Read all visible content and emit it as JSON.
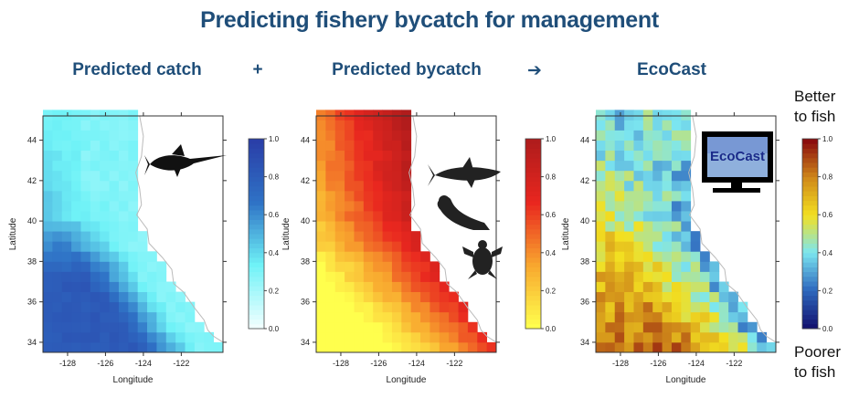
{
  "title": "Predicting fishery bycatch for management",
  "headers": {
    "catch": "Predicted catch",
    "plus": "+",
    "bycatch": "Predicted bycatch",
    "arrow": "➔",
    "ecocast": "EcoCast"
  },
  "axes": {
    "xlabel": "Longitude",
    "ylabel": "Latitude",
    "xticks": [
      "-128",
      "-126",
      "-124",
      "-122"
    ],
    "yticks": [
      "34",
      "36",
      "38",
      "40",
      "42",
      "44"
    ],
    "colorbar_ticks": [
      "0.0",
      "0.2",
      "0.4",
      "0.6",
      "0.8",
      "1.0"
    ]
  },
  "side_labels": {
    "top_line1": "Better",
    "top_line2": "to fish",
    "bottom_line1": "Poorer",
    "bottom_line2": "to fish"
  },
  "inset": {
    "logo_text": "EcoCast"
  },
  "icons": [
    "swordfish-icon",
    "shark-icon",
    "sea-lion-icon",
    "turtle-icon",
    "monitor-icon"
  ],
  "colors": {
    "title": "#1f4e79",
    "catch_ramp": [
      "#f0ffff",
      "#6ff2f7",
      "#2f73c6",
      "#2a3fa8"
    ],
    "bycatch_ramp": [
      "#ffff4d",
      "#f8a62e",
      "#e9271f",
      "#b01c1c"
    ],
    "ecocast_ramp": [
      "#141471",
      "#2f6bbf",
      "#7ce6f0",
      "#f3e021",
      "#d08a1a",
      "#8b0e0e"
    ]
  },
  "chart_data": [
    {
      "type": "heatmap",
      "title": "Predicted catch",
      "xlabel": "Longitude",
      "ylabel": "Latitude",
      "xlim": [
        -129.3,
        -119.8
      ],
      "ylim": [
        33.5,
        45.2
      ],
      "zlim": [
        0,
        1
      ],
      "colorbar_ticks": [
        0,
        0.2,
        0.4,
        0.6,
        0.8,
        1.0
      ],
      "pattern": "low near coast and north (~0.3), high offshore south (~0.75)"
    },
    {
      "type": "heatmap",
      "title": "Predicted bycatch",
      "xlabel": "Longitude",
      "ylabel": "Latitude",
      "xlim": [
        -129.3,
        -119.8
      ],
      "ylim": [
        33.5,
        45.2
      ],
      "zlim": [
        0,
        1
      ],
      "colorbar_ticks": [
        0,
        0.2,
        0.4,
        0.6,
        0.8,
        1.0
      ],
      "pattern": "high near coast (~0.85), lowest offshore south (~0.0)"
    },
    {
      "type": "heatmap",
      "title": "EcoCast",
      "xlabel": "Longitude",
      "ylabel": "Latitude",
      "xlim": [
        -129.3,
        -119.8
      ],
      "ylim": [
        33.5,
        45.2
      ],
      "zlim": [
        0,
        1
      ],
      "colorbar_ticks": [
        0,
        0.2,
        0.4,
        0.6,
        0.8,
        1.0
      ],
      "pattern": "high offshore south (~0.9), low near coast (~0.2)"
    }
  ]
}
